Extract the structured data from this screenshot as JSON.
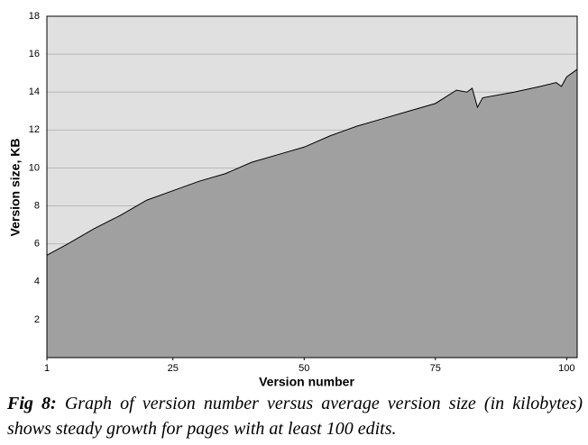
{
  "chart_data": {
    "type": "area",
    "x_label": "Version number",
    "y_label": "Version size, KB",
    "x": [
      1,
      5,
      10,
      15,
      20,
      25,
      30,
      35,
      40,
      45,
      50,
      55,
      60,
      65,
      70,
      75,
      79,
      81,
      82,
      83,
      84,
      90,
      95,
      98,
      99,
      100,
      102
    ],
    "values": [
      5.4,
      6.0,
      6.8,
      7.5,
      8.3,
      8.8,
      9.3,
      9.7,
      10.3,
      10.7,
      11.1,
      11.7,
      12.2,
      12.6,
      13.0,
      13.4,
      14.1,
      14.0,
      14.2,
      13.2,
      13.7,
      14.0,
      14.3,
      14.5,
      14.3,
      14.8,
      15.2
    ],
    "color": "#a0a0a0",
    "background": "#e0e0e0",
    "xlim": [
      1,
      102
    ],
    "xticks": [
      1,
      25,
      50,
      75,
      100
    ],
    "ylim": [
      0,
      18
    ],
    "yticks": [
      2,
      4,
      6,
      8,
      10,
      12,
      14,
      16,
      18
    ],
    "grid": true
  },
  "caption": {
    "label": "Fig 8:",
    "text": "Graph of version number versus average version size (in kilobytes) shows steady growth for pages with at least 100 edits."
  }
}
